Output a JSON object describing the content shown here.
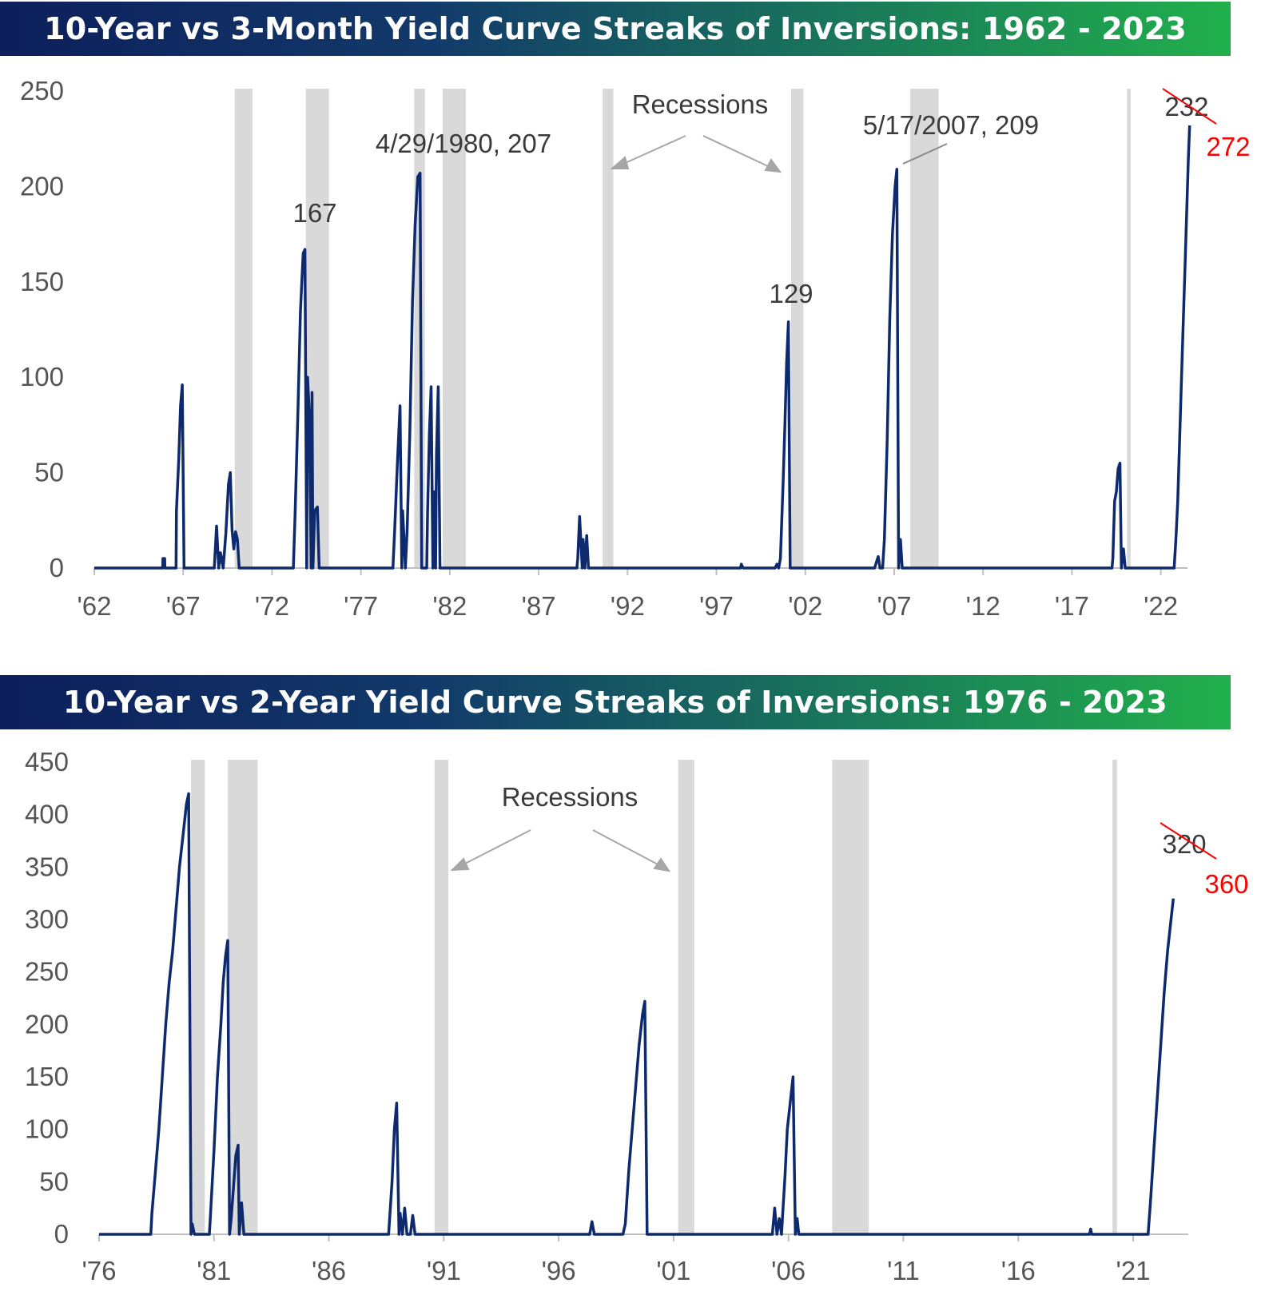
{
  "chart_data": [
    {
      "type": "line",
      "title": "10-Year vs 3-Month Yield Curve Streaks of Inversions: 1962 - 2023",
      "xlabel": "",
      "ylabel": "",
      "x_range": [
        1962,
        2023.5
      ],
      "ylim": [
        0,
        250
      ],
      "y_ticks": [
        "0",
        "50",
        "100",
        "150",
        "200",
        "250"
      ],
      "x_ticks": [
        {
          "label": "'62",
          "year": 1962
        },
        {
          "label": "'67",
          "year": 1967
        },
        {
          "label": "'72",
          "year": 1972
        },
        {
          "label": "'77",
          "year": 1977
        },
        {
          "label": "'82",
          "year": 1982
        },
        {
          "label": "'87",
          "year": 1987
        },
        {
          "label": "'92",
          "year": 1992
        },
        {
          "label": "'97",
          "year": 1997
        },
        {
          "label": "'02",
          "year": 2002
        },
        {
          "label": "'07",
          "year": 2007
        },
        {
          "label": "'12",
          "year": 2012
        },
        {
          "label": "'17",
          "year": 2017
        },
        {
          "label": "'22",
          "year": 2022
        }
      ],
      "grid": false,
      "line_color": "#0d2a6e",
      "recession_color": "#d9d9d9",
      "recessions": [
        [
          1969.9,
          1970.9
        ],
        [
          1973.9,
          1975.2
        ],
        [
          1980.0,
          1980.6
        ],
        [
          1981.6,
          1982.9
        ],
        [
          1990.6,
          1991.2
        ],
        [
          2001.2,
          2001.9
        ],
        [
          2007.9,
          2009.5
        ],
        [
          2020.1,
          2020.3
        ]
      ],
      "series": [
        {
          "points": [
            [
              1962.0,
              0
            ],
            [
              1965.85,
              0
            ],
            [
              1965.86,
              5
            ],
            [
              1965.96,
              5
            ],
            [
              1965.97,
              0
            ],
            [
              1966.6,
              0
            ],
            [
              1966.62,
              30
            ],
            [
              1966.75,
              57
            ],
            [
              1966.85,
              85
            ],
            [
              1966.95,
              96
            ],
            [
              1967.05,
              0
            ],
            [
              1968.75,
              0
            ],
            [
              1968.78,
              5
            ],
            [
              1968.88,
              22
            ],
            [
              1969.0,
              0
            ],
            [
              1969.1,
              8
            ],
            [
              1969.25,
              0
            ],
            [
              1969.4,
              18
            ],
            [
              1969.55,
              44
            ],
            [
              1969.65,
              50
            ],
            [
              1969.75,
              20
            ],
            [
              1969.85,
              10
            ],
            [
              1969.95,
              19
            ],
            [
              1970.05,
              15
            ],
            [
              1970.15,
              0
            ],
            [
              1973.2,
              0
            ],
            [
              1973.3,
              30
            ],
            [
              1973.45,
              80
            ],
            [
              1973.6,
              135
            ],
            [
              1973.75,
              165
            ],
            [
              1973.85,
              167
            ],
            [
              1973.95,
              0
            ],
            [
              1974.0,
              100
            ],
            [
              1974.1,
              80
            ],
            [
              1974.2,
              0
            ],
            [
              1974.25,
              92
            ],
            [
              1974.3,
              0
            ],
            [
              1974.4,
              30
            ],
            [
              1974.55,
              32
            ],
            [
              1974.65,
              0
            ],
            [
              1978.8,
              0
            ],
            [
              1978.9,
              20
            ],
            [
              1979.05,
              55
            ],
            [
              1979.2,
              85
            ],
            [
              1979.3,
              0
            ],
            [
              1979.35,
              30
            ],
            [
              1979.5,
              0
            ],
            [
              1979.6,
              20
            ],
            [
              1979.75,
              70
            ],
            [
              1979.9,
              140
            ],
            [
              1980.05,
              180
            ],
            [
              1980.2,
              205
            ],
            [
              1980.33,
              207
            ],
            [
              1980.42,
              0
            ],
            [
              1980.7,
              0
            ],
            [
              1980.75,
              30
            ],
            [
              1980.85,
              70
            ],
            [
              1980.95,
              95
            ],
            [
              1981.05,
              0
            ],
            [
              1981.1,
              40
            ],
            [
              1981.2,
              0
            ],
            [
              1981.25,
              60
            ],
            [
              1981.35,
              95
            ],
            [
              1981.45,
              0
            ],
            [
              1981.9,
              0
            ],
            [
              1989.15,
              0
            ],
            [
              1989.2,
              5
            ],
            [
              1989.3,
              27
            ],
            [
              1989.45,
              0
            ],
            [
              1989.5,
              15
            ],
            [
              1989.6,
              0
            ],
            [
              1989.7,
              17
            ],
            [
              1989.8,
              0
            ],
            [
              1998.35,
              0
            ],
            [
              1998.4,
              2
            ],
            [
              1998.5,
              0
            ],
            [
              2000.3,
              0
            ],
            [
              2000.4,
              2
            ],
            [
              2000.5,
              0
            ],
            [
              2000.6,
              5
            ],
            [
              2000.75,
              45
            ],
            [
              2000.85,
              75
            ],
            [
              2000.95,
              108
            ],
            [
              2001.05,
              129
            ],
            [
              2001.15,
              0
            ],
            [
              2005.9,
              0
            ],
            [
              2006.0,
              3
            ],
            [
              2006.1,
              6
            ],
            [
              2006.2,
              0
            ],
            [
              2006.35,
              0
            ],
            [
              2006.45,
              15
            ],
            [
              2006.6,
              65
            ],
            [
              2006.75,
              130
            ],
            [
              2006.9,
              175
            ],
            [
              2007.05,
              200
            ],
            [
              2007.15,
              209
            ],
            [
              2007.25,
              0
            ],
            [
              2007.35,
              15
            ],
            [
              2007.45,
              0
            ],
            [
              2019.25,
              0
            ],
            [
              2019.3,
              5
            ],
            [
              2019.4,
              35
            ],
            [
              2019.5,
              40
            ],
            [
              2019.6,
              52
            ],
            [
              2019.7,
              55
            ],
            [
              2019.78,
              0
            ],
            [
              2019.9,
              10
            ],
            [
              2020.0,
              0
            ],
            [
              2022.75,
              0
            ],
            [
              2022.85,
              15
            ],
            [
              2022.95,
              35
            ],
            [
              2023.05,
              65
            ],
            [
              2023.15,
              95
            ],
            [
              2023.25,
              125
            ],
            [
              2023.35,
              155
            ],
            [
              2023.45,
              185
            ],
            [
              2023.55,
              215
            ],
            [
              2023.62,
              232
            ]
          ]
        }
      ],
      "annotations": [
        {
          "text": "167"
        },
        {
          "text": "4/29/1980, 207"
        },
        {
          "text": "Recessions"
        },
        {
          "text": "5/17/2007, 209"
        },
        {
          "text": "129"
        },
        {
          "text": "232",
          "style": "struck"
        },
        {
          "text": "272",
          "style": "red"
        }
      ]
    },
    {
      "type": "line",
      "title": "10-Year vs 2-Year Yield Curve Streaks of Inversions: 1976 - 2023",
      "xlabel": "",
      "ylabel": "",
      "x_range": [
        1976,
        2023.4
      ],
      "ylim": [
        0,
        450
      ],
      "y_ticks": [
        "0",
        "50",
        "100",
        "150",
        "200",
        "250",
        "300",
        "350",
        "400",
        "450"
      ],
      "x_ticks": [
        {
          "label": "'76",
          "year": 1976
        },
        {
          "label": "'81",
          "year": 1981
        },
        {
          "label": "'86",
          "year": 1986
        },
        {
          "label": "'91",
          "year": 1991
        },
        {
          "label": "'96",
          "year": 1996
        },
        {
          "label": "'01",
          "year": 2001
        },
        {
          "label": "'06",
          "year": 2006
        },
        {
          "label": "'11",
          "year": 2011
        },
        {
          "label": "'16",
          "year": 2016
        },
        {
          "label": "'21",
          "year": 2021
        }
      ],
      "grid": false,
      "line_color": "#0d2a6e",
      "recession_color": "#d9d9d9",
      "recessions": [
        [
          1980.0,
          1980.6
        ],
        [
          1981.6,
          1982.9
        ],
        [
          1990.6,
          1991.2
        ],
        [
          2001.2,
          2001.9
        ],
        [
          2007.9,
          2009.5
        ],
        [
          2020.1,
          2020.3
        ]
      ],
      "series": [
        {
          "points": [
            [
              1976.0,
              0
            ],
            [
              1978.25,
              0
            ],
            [
              1978.3,
              20
            ],
            [
              1978.45,
              60
            ],
            [
              1978.6,
              100
            ],
            [
              1978.75,
              150
            ],
            [
              1978.9,
              200
            ],
            [
              1979.05,
              240
            ],
            [
              1979.2,
              270
            ],
            [
              1979.35,
              310
            ],
            [
              1979.5,
              350
            ],
            [
              1979.65,
              380
            ],
            [
              1979.8,
              410
            ],
            [
              1979.9,
              420
            ],
            [
              1980.0,
              0
            ],
            [
              1980.05,
              10
            ],
            [
              1980.15,
              0
            ],
            [
              1980.8,
              0
            ],
            [
              1980.85,
              20
            ],
            [
              1981.0,
              80
            ],
            [
              1981.15,
              150
            ],
            [
              1981.3,
              200
            ],
            [
              1981.4,
              240
            ],
            [
              1981.5,
              265
            ],
            [
              1981.6,
              280
            ],
            [
              1981.68,
              0
            ],
            [
              1981.75,
              15
            ],
            [
              1981.85,
              45
            ],
            [
              1981.95,
              75
            ],
            [
              1982.05,
              85
            ],
            [
              1982.1,
              0
            ],
            [
              1982.2,
              30
            ],
            [
              1982.3,
              0
            ],
            [
              1988.6,
              0
            ],
            [
              1988.75,
              50
            ],
            [
              1988.85,
              100
            ],
            [
              1988.95,
              125
            ],
            [
              1989.05,
              0
            ],
            [
              1989.1,
              20
            ],
            [
              1989.2,
              0
            ],
            [
              1989.3,
              25
            ],
            [
              1989.4,
              0
            ],
            [
              1989.55,
              0
            ],
            [
              1989.65,
              18
            ],
            [
              1989.75,
              0
            ],
            [
              1997.35,
              0
            ],
            [
              1997.45,
              12
            ],
            [
              1997.55,
              0
            ],
            [
              1998.8,
              0
            ],
            [
              1998.9,
              10
            ],
            [
              1999.05,
              60
            ],
            [
              1999.2,
              100
            ],
            [
              1999.35,
              140
            ],
            [
              1999.5,
              180
            ],
            [
              1999.65,
              210
            ],
            [
              1999.75,
              222
            ],
            [
              1999.85,
              0
            ],
            [
              2005.3,
              0
            ],
            [
              2005.4,
              25
            ],
            [
              2005.5,
              0
            ],
            [
              2005.6,
              15
            ],
            [
              2005.7,
              0
            ],
            [
              2005.75,
              20
            ],
            [
              2005.85,
              55
            ],
            [
              2005.95,
              100
            ],
            [
              2006.1,
              130
            ],
            [
              2006.2,
              150
            ],
            [
              2006.3,
              0
            ],
            [
              2006.38,
              15
            ],
            [
              2006.45,
              0
            ],
            [
              2019.1,
              0
            ],
            [
              2019.15,
              5
            ],
            [
              2019.2,
              0
            ],
            [
              2021.65,
              0
            ],
            [
              2021.75,
              30
            ],
            [
              2021.9,
              80
            ],
            [
              2022.05,
              130
            ],
            [
              2022.2,
              180
            ],
            [
              2022.35,
              230
            ],
            [
              2022.5,
              270
            ],
            [
              2022.65,
              300
            ],
            [
              2022.75,
              320
            ]
          ]
        }
      ],
      "annotations": [
        {
          "text": "Recessions"
        },
        {
          "text": "320",
          "style": "struck"
        },
        {
          "text": "360",
          "style": "red"
        }
      ]
    }
  ]
}
